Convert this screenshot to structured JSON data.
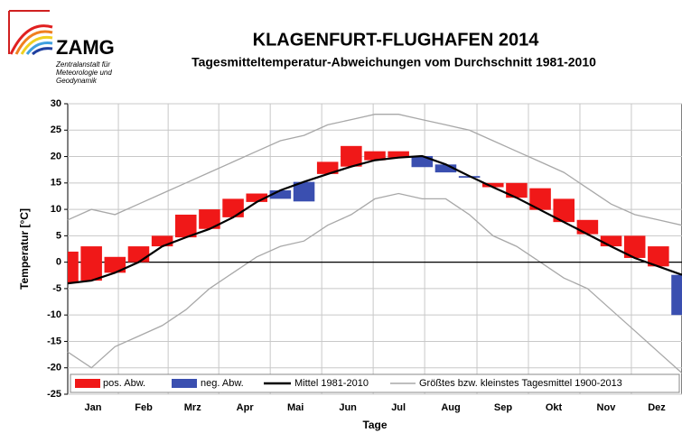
{
  "logo": {
    "name": "ZAMG",
    "lines": [
      "Zentralanstalt für",
      "Meteorologie und",
      "Geodynamik"
    ]
  },
  "chart_data": {
    "type": "deviation",
    "title": "KLAGENFURT-FLUGHAFEN 2014",
    "subtitle": "Tagesmitteltemperatur-Abweichungen vom Durchschnitt 1981-2010",
    "y_label": "Temperatur [°C]",
    "x_label": "Tage",
    "x": [
      1,
      15,
      29,
      43,
      57,
      71,
      85,
      99,
      113,
      127,
      141,
      155,
      169,
      183,
      197,
      211,
      225,
      239,
      253,
      267,
      281,
      295,
      309,
      323,
      337,
      351,
      365
    ],
    "xlim": [
      1,
      365
    ],
    "xticks": [
      {
        "value": 16,
        "label": "Jan"
      },
      {
        "value": 46,
        "label": "Feb"
      },
      {
        "value": 75,
        "label": "Mrz"
      },
      {
        "value": 106,
        "label": "Apr"
      },
      {
        "value": 136,
        "label": "Mai"
      },
      {
        "value": 167,
        "label": "Jun"
      },
      {
        "value": 197,
        "label": "Jul"
      },
      {
        "value": 228,
        "label": "Aug"
      },
      {
        "value": 259,
        "label": "Sep"
      },
      {
        "value": 289,
        "label": "Okt"
      },
      {
        "value": 320,
        "label": "Nov"
      },
      {
        "value": 350,
        "label": "Dez"
      }
    ],
    "ylim": [
      -25,
      30
    ],
    "yticks": [
      -25,
      -20,
      -15,
      -10,
      -5,
      0,
      5,
      10,
      15,
      20,
      25,
      30
    ],
    "grid": true,
    "daily": {
      "values": [
        2,
        3,
        1,
        3,
        5,
        9,
        10,
        12,
        13,
        12,
        11.5,
        19,
        22,
        21,
        21,
        18,
        17,
        16,
        15,
        15,
        14,
        12,
        8,
        5,
        5,
        3,
        -10
      ],
      "positive": {
        "name": "pos. Abw.",
        "color": "#f01818"
      },
      "negative": {
        "name": "neg. Abw.",
        "color": "#3a4fb0"
      }
    },
    "series": [
      {
        "name": "Mittel 1981-2010",
        "color": "#000000",
        "values": [
          -4,
          -3.5,
          -2,
          0,
          3,
          4.7,
          6.3,
          8.5,
          11.4,
          13.6,
          15.2,
          16.7,
          18.1,
          19.3,
          19.8,
          20.1,
          18.5,
          16.3,
          14.2,
          12.2,
          9.9,
          7.6,
          5.3,
          3,
          0.8,
          -0.8,
          -2.4
        ]
      },
      {
        "name": "Größtes bzw. kleinstes Tagesmittel 1900-2013",
        "color": "#a8a8a8",
        "values": [
          8,
          10,
          9,
          11,
          13,
          15,
          17,
          19,
          21,
          23,
          24,
          26,
          27,
          28,
          28,
          27,
          26,
          25,
          23,
          21,
          19,
          17,
          14,
          11,
          9,
          8,
          7
        ]
      },
      {
        "color": "#a8a8a8",
        "values": [
          -17,
          -20,
          -16,
          -14,
          -12,
          -9,
          -5,
          -2,
          1,
          3,
          4,
          7,
          9,
          12,
          13,
          12,
          12,
          9,
          5,
          3,
          0,
          -3,
          -5,
          -9,
          -13,
          -17,
          -21
        ]
      }
    ]
  }
}
